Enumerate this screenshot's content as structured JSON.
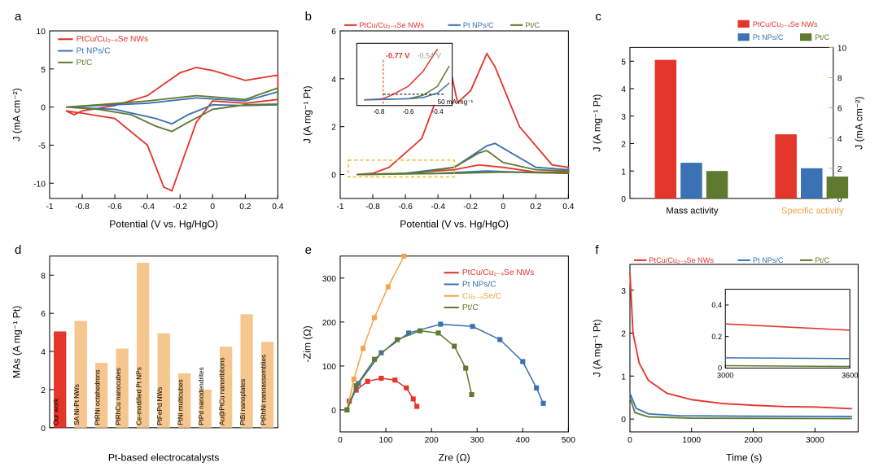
{
  "colors": {
    "red": "#e4352b",
    "blue": "#3a72b5",
    "green": "#5f7a2f",
    "orange": "#f5a44b",
    "peach": "#f5c78f",
    "black": "#000"
  },
  "a": {
    "label": "a",
    "xlabel": "Potential (V vs. Hg/HgO)",
    "ylabel": "J (mA cm⁻²)",
    "xlim": [
      -1.0,
      0.4
    ],
    "ylim": [
      -12,
      10
    ],
    "xticks": [
      -1.0,
      -0.8,
      -0.6,
      -0.4,
      -0.2,
      0.0,
      0.2,
      0.4
    ],
    "yticks": [
      -10,
      -5,
      0,
      5,
      10
    ],
    "legend": [
      {
        "label": "PtCu/Cu₂₋ₓSe NWs",
        "color": "red"
      },
      {
        "label": "Pt NPs/C",
        "color": "blue"
      },
      {
        "label": "Pt/C",
        "color": "green"
      }
    ],
    "curves": {
      "red": [
        [
          -0.9,
          -0.5
        ],
        [
          -0.85,
          -1
        ],
        [
          -0.8,
          -0.5
        ],
        [
          -0.6,
          0.2
        ],
        [
          -0.4,
          1.5
        ],
        [
          -0.2,
          4.5
        ],
        [
          -0.1,
          5.2
        ],
        [
          0,
          4.8
        ],
        [
          0.2,
          3.5
        ],
        [
          0.4,
          4.2
        ],
        [
          0.4,
          1
        ],
        [
          0.2,
          0.5
        ],
        [
          0,
          0.8
        ],
        [
          -0.1,
          -2
        ],
        [
          -0.2,
          -8
        ],
        [
          -0.25,
          -11
        ],
        [
          -0.3,
          -10.5
        ],
        [
          -0.4,
          -5
        ],
        [
          -0.6,
          -1.5
        ],
        [
          -0.8,
          -0.8
        ],
        [
          -0.9,
          -0.5
        ]
      ],
      "blue": [
        [
          -0.9,
          0
        ],
        [
          -0.7,
          0.2
        ],
        [
          -0.4,
          0.5
        ],
        [
          -0.1,
          1.2
        ],
        [
          0.2,
          0.8
        ],
        [
          0.4,
          2
        ],
        [
          0.4,
          0.3
        ],
        [
          0.2,
          0.2
        ],
        [
          0,
          0.3
        ],
        [
          -0.15,
          -1
        ],
        [
          -0.25,
          -2.2
        ],
        [
          -0.35,
          -1.5
        ],
        [
          -0.6,
          -0.3
        ],
        [
          -0.9,
          0
        ]
      ],
      "green": [
        [
          -0.9,
          0
        ],
        [
          -0.7,
          0.3
        ],
        [
          -0.4,
          0.8
        ],
        [
          -0.1,
          1.5
        ],
        [
          0.2,
          1.0
        ],
        [
          0.4,
          2.5
        ],
        [
          0.4,
          0.4
        ],
        [
          0.2,
          0.3
        ],
        [
          0,
          -0.3
        ],
        [
          -0.15,
          -2
        ],
        [
          -0.25,
          -3.2
        ],
        [
          -0.35,
          -2.5
        ],
        [
          -0.5,
          -1
        ],
        [
          -0.7,
          -0.3
        ],
        [
          -0.9,
          0
        ]
      ]
    }
  },
  "b": {
    "label": "b",
    "xlabel": "Potential (V vs. Hg/HgO)",
    "ylabel": "J (A mg⁻¹ Pt)",
    "xlim": [
      -1.0,
      0.4
    ],
    "ylim": [
      -1,
      6
    ],
    "xticks": [
      -1.0,
      -0.8,
      -0.6,
      -0.4,
      -0.2,
      0.0,
      0.2,
      0.4
    ],
    "yticks": [
      0,
      2,
      4,
      6
    ],
    "legend": [
      {
        "label": "PtCu/Cu₂₋ₓSe NWs",
        "color": "red"
      },
      {
        "label": "Pt NPs/C",
        "color": "blue"
      },
      {
        "label": "Pt/C",
        "color": "green"
      }
    ],
    "inset": {
      "v1": "-0.77 V",
      "v2": "-0.54 V",
      "v3": "50 mA mg⁻¹"
    },
    "curves": {
      "red": [
        [
          -0.9,
          0
        ],
        [
          -0.8,
          0.05
        ],
        [
          -0.7,
          0.3
        ],
        [
          -0.5,
          1.5
        ],
        [
          -0.33,
          4.6
        ],
        [
          -0.28,
          3.0
        ],
        [
          -0.2,
          3.5
        ],
        [
          -0.1,
          5.05
        ],
        [
          -0.05,
          4.5
        ],
        [
          0.1,
          2
        ],
        [
          0.3,
          0.4
        ],
        [
          0.4,
          0.3
        ],
        [
          0.4,
          0.1
        ],
        [
          0.2,
          0.1
        ],
        [
          0,
          0.3
        ],
        [
          -0.15,
          0.4
        ],
        [
          -0.3,
          0.2
        ],
        [
          -0.6,
          0.05
        ],
        [
          -0.9,
          0
        ]
      ],
      "blue": [
        [
          -0.9,
          0
        ],
        [
          -0.6,
          0.05
        ],
        [
          -0.3,
          0.3
        ],
        [
          -0.1,
          1.2
        ],
        [
          -0.05,
          1.3
        ],
        [
          0.05,
          0.9
        ],
        [
          0.2,
          0.3
        ],
        [
          0.4,
          0.2
        ],
        [
          0.4,
          0.05
        ],
        [
          0.1,
          0.1
        ],
        [
          -0.1,
          0.15
        ],
        [
          -0.4,
          0.05
        ],
        [
          -0.9,
          0
        ]
      ],
      "green": [
        [
          -0.9,
          0
        ],
        [
          -0.55,
          0.05
        ],
        [
          -0.3,
          0.3
        ],
        [
          -0.15,
          0.9
        ],
        [
          -0.1,
          1.0
        ],
        [
          0,
          0.5
        ],
        [
          0.2,
          0.2
        ],
        [
          0.4,
          0.15
        ],
        [
          0.4,
          0.05
        ],
        [
          0,
          0.1
        ],
        [
          -0.3,
          0.05
        ],
        [
          -0.9,
          0
        ]
      ]
    }
  },
  "c": {
    "label": "c",
    "ylabel": "J (A mg⁻¹ Pt)",
    "ylabel2": "J (mA cm⁻²)",
    "ylim": [
      0,
      5.5
    ],
    "ylim2": [
      0,
      10
    ],
    "yticks": [
      0,
      1,
      2,
      3,
      4,
      5
    ],
    "yticks2": [
      0,
      2,
      4,
      6,
      8,
      10
    ],
    "legend": [
      {
        "label": "PtCu/Cu₂₋ₓSe NWs",
        "color": "red"
      },
      {
        "label": "Pt NPs/C",
        "color": "blue"
      },
      {
        "label": "Pt/C",
        "color": "green"
      }
    ],
    "groups": [
      {
        "label": "Mass activity",
        "color": "black",
        "values": {
          "red": 5.05,
          "blue": 1.3,
          "green": 1.0
        }
      },
      {
        "label": "Specific activity",
        "color": "orange",
        "values": {
          "red": 4.25,
          "blue": 2.0,
          "green": 1.45
        }
      }
    ]
  },
  "d": {
    "label": "d",
    "xlabel": "Pt-based electrocatalysts",
    "ylabel": "MAs (A mg⁻¹ Pt)",
    "ylim": [
      0,
      9
    ],
    "yticks": [
      0,
      2,
      4,
      6,
      8
    ],
    "bars": [
      {
        "label": "Our work",
        "value": 5.05,
        "color": "red"
      },
      {
        "label": "SA Ni-Pt NWs",
        "value": 5.6,
        "color": "peach"
      },
      {
        "label": "PtRNi octahedrons",
        "value": 3.4,
        "color": "peach"
      },
      {
        "label": "PtRhCu nanocubes",
        "value": 4.15,
        "color": "peach"
      },
      {
        "label": "Ce-modified Pt NPs",
        "value": 8.65,
        "color": "peach"
      },
      {
        "label": "PtFePd NWs",
        "value": 4.95,
        "color": "peach"
      },
      {
        "label": "PtNi multicubes",
        "value": 2.85,
        "color": "peach"
      },
      {
        "label": "PtPd nanodendrites",
        "value": 2.0,
        "color": "peach"
      },
      {
        "label": "Au@PtCu nanoribbons",
        "value": 4.25,
        "color": "peach"
      },
      {
        "label": "PtBi nanoplates",
        "value": 5.95,
        "color": "peach"
      },
      {
        "label": "PtRhNi nanoassemblies",
        "value": 4.5,
        "color": "peach"
      }
    ]
  },
  "e": {
    "label": "e",
    "xlabel": "Zre (Ω)",
    "ylabel": "-Zim (Ω)",
    "xlim": [
      0,
      500
    ],
    "ylim": [
      -50,
      350
    ],
    "xticks": [
      0,
      100,
      200,
      300,
      400,
      500
    ],
    "yticks": [
      0,
      100,
      200,
      300
    ],
    "legend": [
      {
        "label": "PtCu/Cu₂₋ₓSe NWs",
        "color": "red"
      },
      {
        "label": "Pt NPs/C",
        "color": "blue"
      },
      {
        "label": "Cu₂₋ₓSe/C",
        "color": "orange"
      },
      {
        "label": "Pt/C",
        "color": "green"
      }
    ],
    "curves": {
      "red": [
        [
          15,
          0
        ],
        [
          20,
          20
        ],
        [
          35,
          45
        ],
        [
          60,
          65
        ],
        [
          90,
          72
        ],
        [
          120,
          68
        ],
        [
          145,
          50
        ],
        [
          160,
          25
        ],
        [
          168,
          8
        ]
      ],
      "blue": [
        [
          15,
          0
        ],
        [
          40,
          60
        ],
        [
          90,
          130
        ],
        [
          150,
          175
        ],
        [
          220,
          195
        ],
        [
          290,
          190
        ],
        [
          350,
          160
        ],
        [
          400,
          110
        ],
        [
          430,
          50
        ],
        [
          445,
          15
        ]
      ],
      "orange": [
        [
          15,
          0
        ],
        [
          30,
          70
        ],
        [
          50,
          140
        ],
        [
          75,
          210
        ],
        [
          105,
          280
        ],
        [
          140,
          350
        ]
      ],
      "green": [
        [
          15,
          0
        ],
        [
          35,
          55
        ],
        [
          75,
          115
        ],
        [
          125,
          160
        ],
        [
          175,
          180
        ],
        [
          215,
          175
        ],
        [
          250,
          145
        ],
        [
          275,
          95
        ],
        [
          288,
          35
        ]
      ]
    }
  },
  "f": {
    "label": "f",
    "xlabel": "Time (s)",
    "ylabel": "J (A mg⁻¹ Pt)",
    "xlim": [
      0,
      3700
    ],
    "ylim": [
      -0.3,
      3.6
    ],
    "xticks": [
      0,
      1000,
      2000,
      3000
    ],
    "yticks": [
      0,
      1,
      2,
      3
    ],
    "legend": [
      {
        "label": "PtCu/Cu₂₋ₓSe NWs",
        "color": "red"
      },
      {
        "label": "Pt NPs/C",
        "color": "blue"
      },
      {
        "label": "Pt/C",
        "color": "green"
      }
    ],
    "inset": {
      "xlim": [
        3000,
        3600
      ],
      "ylim": [
        0,
        0.5
      ],
      "xticks": [
        3000,
        3600
      ],
      "yticks": [
        0,
        0.2,
        0.4
      ]
    },
    "curves": {
      "red": [
        [
          0,
          3.4
        ],
        [
          50,
          2.0
        ],
        [
          150,
          1.3
        ],
        [
          300,
          0.9
        ],
        [
          600,
          0.6
        ],
        [
          1000,
          0.45
        ],
        [
          1500,
          0.36
        ],
        [
          2000,
          0.32
        ],
        [
          2500,
          0.29
        ],
        [
          3000,
          0.28
        ],
        [
          3600,
          0.24
        ]
      ],
      "blue": [
        [
          0,
          0.6
        ],
        [
          100,
          0.25
        ],
        [
          300,
          0.12
        ],
        [
          800,
          0.075
        ],
        [
          2000,
          0.065
        ],
        [
          3600,
          0.06
        ]
      ],
      "green": [
        [
          0,
          0.5
        ],
        [
          80,
          0.15
        ],
        [
          300,
          0.05
        ],
        [
          1000,
          0.02
        ],
        [
          3600,
          0.01
        ]
      ]
    }
  }
}
